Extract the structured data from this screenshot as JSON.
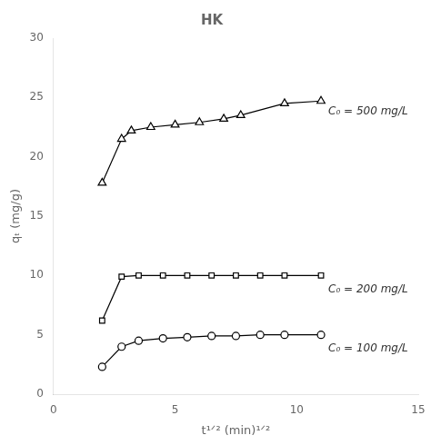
{
  "chart_data": {
    "type": "line",
    "title": "HK",
    "x_label": "t¹ᐟ² (min)¹ᐟ²",
    "y_label": "qₜ (mg/g)",
    "xlim": [
      0,
      15
    ],
    "ylim": [
      0,
      30
    ],
    "xticks": [
      0,
      5,
      10,
      15
    ],
    "yticks": [
      0,
      5,
      10,
      15,
      20,
      25,
      30
    ],
    "grid": false,
    "series": [
      {
        "name": "C₀ = 500 mg/L",
        "color": "black",
        "marker": "triangle",
        "line_style": "solid",
        "x": [
          2.0,
          2.8,
          3.2,
          4.0,
          5.0,
          6.0,
          7.0,
          7.7,
          9.5,
          11.0
        ],
        "values": [
          17.8,
          21.5,
          22.2,
          22.5,
          22.7,
          22.9,
          23.2,
          23.5,
          24.5,
          24.7
        ]
      },
      {
        "name": "C₀ = 200 mg/L",
        "color": "black",
        "marker": "square",
        "line_style": "solid",
        "x": [
          2.0,
          2.8,
          3.5,
          4.5,
          5.5,
          6.5,
          7.5,
          8.5,
          9.5,
          11.0
        ],
        "values": [
          6.2,
          9.9,
          10.0,
          10.0,
          10.0,
          10.0,
          10.0,
          10.0,
          10.0,
          10.0
        ]
      },
      {
        "name": "C₀ = 100 mg/L",
        "color": "black",
        "marker": "circle",
        "line_style": "solid",
        "x": [
          2.0,
          2.8,
          3.5,
          4.5,
          5.5,
          6.5,
          7.5,
          8.5,
          9.5,
          11.0
        ],
        "values": [
          2.3,
          4.0,
          4.5,
          4.7,
          4.8,
          4.9,
          4.9,
          5.0,
          5.0,
          5.0
        ]
      }
    ],
    "annotations": [
      {
        "text": "C₀ = 500 mg/L",
        "x": 11.3,
        "y": 23.8
      },
      {
        "text": "C₀ = 200 mg/L",
        "x": 11.3,
        "y": 8.8
      },
      {
        "text": "C₀ = 100 mg/L",
        "x": 11.3,
        "y": 3.8
      }
    ]
  }
}
